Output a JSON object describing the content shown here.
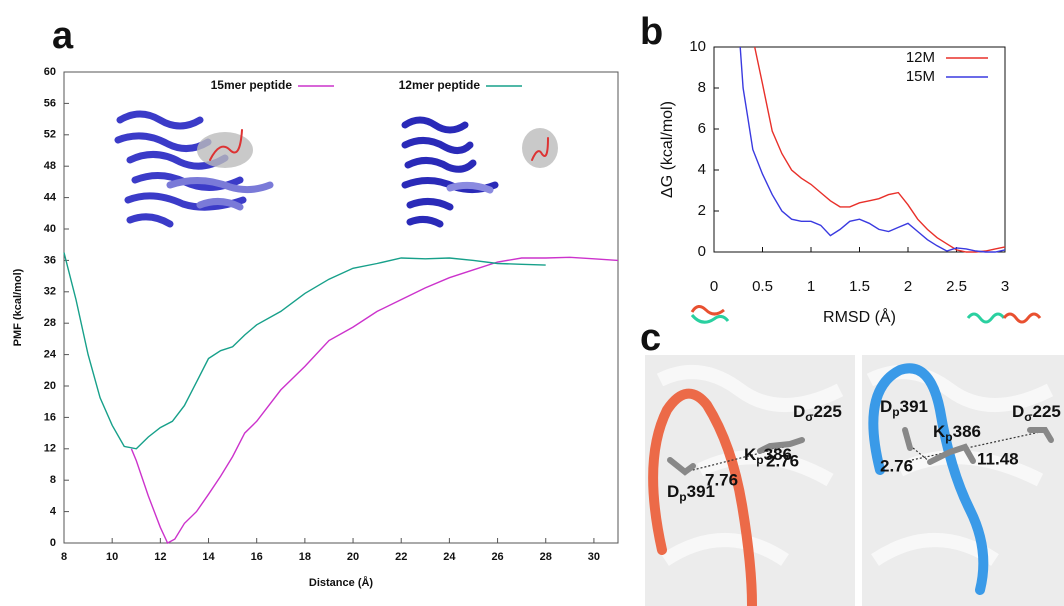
{
  "chart_data": [
    {
      "type": "line",
      "panel_label": "a",
      "xlabel": "Distance (Å)",
      "ylabel": "PMF (kcal/mol)",
      "xlim": [
        8,
        31
      ],
      "ylim": [
        0,
        60
      ],
      "xticks": [
        8,
        10,
        12,
        14,
        16,
        18,
        20,
        22,
        24,
        26,
        28,
        30
      ],
      "yticks": [
        0,
        4,
        8,
        12,
        16,
        20,
        24,
        28,
        32,
        36,
        40,
        44,
        48,
        52,
        56,
        60
      ],
      "grid": false,
      "legend": "top-center",
      "series": [
        {
          "name": "15mer peptide",
          "color": "#cc33cc",
          "x": [
            10.8,
            11,
            11.5,
            12,
            12.3,
            12.6,
            13,
            13.5,
            14,
            14.5,
            15,
            15.5,
            16,
            17,
            18,
            19,
            20,
            21,
            22,
            23,
            24,
            25,
            26,
            27,
            28,
            29,
            30,
            31
          ],
          "values": [
            12,
            10.5,
            6,
            2,
            0,
            0.5,
            2.5,
            4,
            6.2,
            8.5,
            11,
            14,
            15.5,
            19.5,
            22.5,
            25.8,
            27.5,
            29.5,
            31,
            32.5,
            33.8,
            34.8,
            35.8,
            36.3,
            36.3,
            36.4,
            36.2,
            36
          ]
        },
        {
          "name": "12mer peptide",
          "color": "#17a08a",
          "x": [
            8,
            8.5,
            9,
            9.5,
            10,
            10.5,
            11,
            11.5,
            12,
            12.5,
            13,
            13.5,
            14,
            14.5,
            15,
            15.5,
            16,
            17,
            18,
            19,
            20,
            21,
            22,
            23,
            24,
            25,
            26,
            27,
            28
          ],
          "values": [
            37,
            31,
            24,
            18.5,
            15,
            12.3,
            12,
            13.5,
            14.7,
            15.5,
            17.5,
            20.5,
            23.5,
            24.5,
            25,
            26.5,
            27.8,
            29.5,
            31.8,
            33.6,
            35,
            35.6,
            36.3,
            36.2,
            36.3,
            36,
            35.6,
            35.5,
            35.4
          ]
        }
      ]
    },
    {
      "type": "line",
      "panel_label": "b",
      "xlabel": "RMSD (Å)",
      "ylabel": "ΔG (kcal/mol)",
      "xlim": [
        0,
        3
      ],
      "ylim": [
        0,
        10
      ],
      "xticks": [
        0,
        0.5,
        1,
        1.5,
        2,
        2.5,
        3
      ],
      "yticks": [
        0,
        2,
        4,
        6,
        8,
        10
      ],
      "grid": false,
      "legend": "top-right",
      "series": [
        {
          "name": "12M",
          "color": "#e8302a",
          "x": [
            0.42,
            0.5,
            0.6,
            0.7,
            0.8,
            0.9,
            1,
            1.1,
            1.2,
            1.3,
            1.4,
            1.5,
            1.6,
            1.7,
            1.8,
            1.9,
            2,
            2.1,
            2.2,
            2.3,
            2.4,
            2.5,
            2.6,
            2.7,
            2.8,
            2.9,
            3
          ],
          "values": [
            10,
            8.2,
            5.9,
            4.8,
            4,
            3.6,
            3.3,
            2.9,
            2.5,
            2.2,
            2.2,
            2.4,
            2.5,
            2.6,
            2.8,
            2.9,
            2.3,
            1.6,
            1.1,
            0.7,
            0.4,
            0.1,
            0,
            0,
            0.05,
            0.15,
            0.25
          ]
        },
        {
          "name": "15M",
          "color": "#3a3ae0",
          "x": [
            0.27,
            0.3,
            0.35,
            0.4,
            0.5,
            0.6,
            0.7,
            0.8,
            0.9,
            1,
            1.1,
            1.2,
            1.3,
            1.4,
            1.5,
            1.6,
            1.7,
            1.8,
            1.9,
            2,
            2.1,
            2.2,
            2.3,
            2.4,
            2.5,
            2.6,
            2.7,
            2.8,
            2.9,
            3
          ],
          "values": [
            10,
            8,
            6.5,
            5,
            3.8,
            2.8,
            2,
            1.6,
            1.5,
            1.5,
            1.3,
            0.8,
            1.1,
            1.5,
            1.6,
            1.4,
            1.1,
            1,
            1.2,
            1.4,
            1,
            0.6,
            0.3,
            0.05,
            0.2,
            0.15,
            0.05,
            0,
            0,
            0.1
          ]
        }
      ]
    }
  ],
  "panel_c": {
    "label": "c",
    "left": {
      "labels": [
        {
          "base": "K",
          "sub": "p",
          "num": "386"
        },
        {
          "base": "D",
          "sub": "σ",
          "num": "225"
        },
        {
          "base": "D",
          "sub": "p",
          "num": "391"
        }
      ],
      "distances": [
        7.76,
        2.76
      ]
    },
    "right": {
      "labels": [
        {
          "base": "D",
          "sub": "p",
          "num": "391"
        },
        {
          "base": "K",
          "sub": "p",
          "num": "386"
        },
        {
          "base": "D",
          "sub": "σ",
          "num": "225"
        }
      ],
      "distances": [
        2.76,
        11.48
      ]
    }
  }
}
